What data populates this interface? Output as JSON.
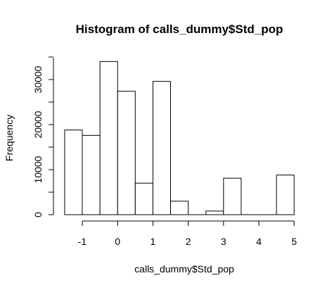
{
  "chart_data": {
    "type": "bar",
    "title": "Histogram of calls_dummy$Std_pop",
    "xlabel": "calls_dummy$Std_pop",
    "ylabel": "Frequency",
    "xlim": [
      -1.5,
      5
    ],
    "ylim": [
      0,
      35000
    ],
    "x_ticks": [
      -1,
      0,
      1,
      2,
      3,
      4,
      5
    ],
    "x_tick_labels": [
      "-1",
      "0",
      "1",
      "2",
      "3",
      "4",
      "5"
    ],
    "y_ticks": [
      0,
      10000,
      20000,
      30000
    ],
    "y_tick_labels": [
      "0",
      "10000",
      "20000",
      "30000"
    ],
    "bin_edges": [
      -1.5,
      -1.0,
      -0.5,
      0.0,
      0.5,
      1.0,
      1.5,
      2.0,
      2.5,
      3.0,
      3.5,
      4.0,
      4.5,
      5.0
    ],
    "values": [
      18800,
      17600,
      34000,
      27400,
      7000,
      29600,
      3000,
      0,
      800,
      8100,
      0,
      0,
      8800
    ],
    "grid": false,
    "bar_fill": "#ffffff",
    "bar_stroke": "#000000"
  }
}
